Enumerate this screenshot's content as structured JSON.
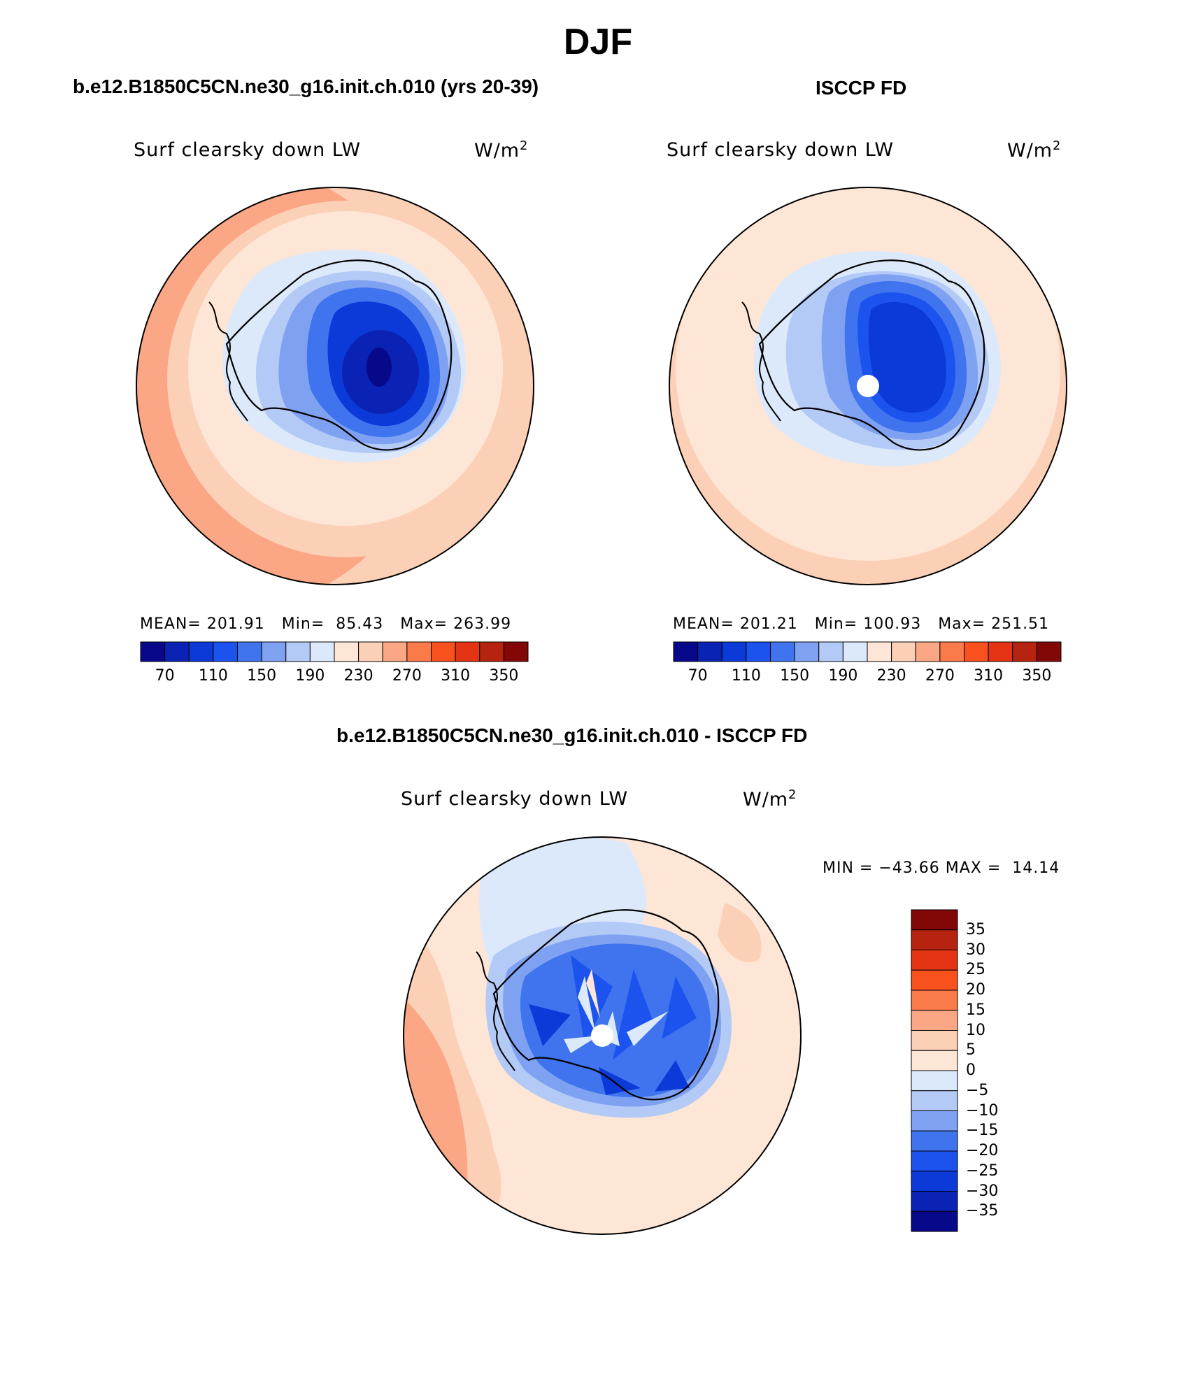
{
  "title": "DJF",
  "panels": [
    {
      "title": "b.e12.B1850C5CN.ne30_g16.init.ch.010 (yrs 20-39)",
      "variable": "Surf clearsky down LW",
      "units": "W/m",
      "units_exp": "2",
      "stats": "MEAN= 201.91   Min=  85.43   Max= 263.99",
      "colorbar_ticks": [
        "70",
        "110",
        "150",
        "190",
        "230",
        "270",
        "310",
        "350"
      ]
    },
    {
      "title": "ISCCP FD",
      "variable": "Surf clearsky down LW",
      "units": "W/m",
      "units_exp": "2",
      "stats": "MEAN= 201.21   Min= 100.93   Max= 251.51",
      "colorbar_ticks": [
        "70",
        "110",
        "150",
        "190",
        "230",
        "270",
        "310",
        "350"
      ]
    },
    {
      "title": "b.e12.B1850C5CN.ne30_g16.init.ch.010 - ISCCP FD",
      "variable": "Surf clearsky down LW",
      "units": "W/m",
      "units_exp": "2",
      "stats": "MIN = −43.66 MAX =  14.14",
      "colorbar_ticks": [
        "35",
        "30",
        "25",
        "20",
        "15",
        "10",
        "5",
        "0",
        "−5",
        "−10",
        "−15",
        "−20",
        "−25",
        "−30",
        "−35"
      ]
    }
  ],
  "colors": {
    "mean_scale": [
      "#08088a",
      "#0a23b4",
      "#0b3ad8",
      "#1c53ef",
      "#3f74ee",
      "#7ea1f2",
      "#b3c9f6",
      "#dce9fb",
      "#fde6d6",
      "#fcd0b6",
      "#fba684",
      "#fb7a4a",
      "#f9511e",
      "#e53413",
      "#b6240f",
      "#820808"
    ],
    "diff_scale": [
      "#820808",
      "#b6240f",
      "#e53413",
      "#f9511e",
      "#fb7a4a",
      "#fba684",
      "#fcd0b6",
      "#fde6d6",
      "#dce9fb",
      "#b3c9f6",
      "#7ea1f2",
      "#3f74ee",
      "#1c53ef",
      "#0b3ad8",
      "#0a23b4",
      "#08088a"
    ]
  }
}
